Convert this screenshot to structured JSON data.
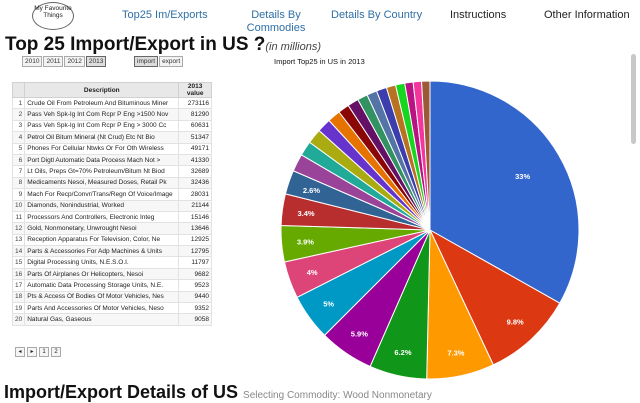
{
  "nav": {
    "logo": "My Favourite Things",
    "links": [
      "Top25 Im/Exports",
      "Details By Commodies",
      "Details By Country",
      "Instructions",
      "Other Information"
    ]
  },
  "title": {
    "main": "Top 25 Import/Export in US ?",
    "unit": "(in millions)"
  },
  "years": [
    "2010",
    "2011",
    "2012",
    "2013"
  ],
  "year_selected": "2013",
  "types": [
    "import",
    "export"
  ],
  "type_selected": "import",
  "table": {
    "headers": [
      "",
      "Description",
      "2013 value"
    ],
    "rows": [
      [
        "1",
        "Crude Oil From Petroleum And Bituminous Miner",
        "273116"
      ],
      [
        "2",
        "Pass Veh Spk-Ig Int Com Rcpr P Eng >1500 Nov",
        "81290"
      ],
      [
        "3",
        "Pass Veh Spk-Ig Int Com Rcpr P Eng > 3000 Cc",
        "60631"
      ],
      [
        "4",
        "Petrol Oil Bitum Mineral (Nt Crud) Etc Nt Bio",
        "51347"
      ],
      [
        "5",
        "Phones For Cellular Ntwks Or For Oth Wireless",
        "49171"
      ],
      [
        "6",
        "Port Digtl Automatic Data Process Mach Not >",
        "41330"
      ],
      [
        "7",
        "Lt Oils, Preps Gt=70% Petroleum/Bitum Nt Biod",
        "32689"
      ],
      [
        "8",
        "Medicaments Nesoi, Measured Doses, Retail Pk",
        "32436"
      ],
      [
        "9",
        "Mach For Recp/Convr/Trans/Regn Of Voice/Image",
        "28031"
      ],
      [
        "10",
        "Diamonds, Nonindustrial, Worked",
        "21144"
      ],
      [
        "11",
        "Processors And Controllers, Electronic Integ",
        "15146"
      ],
      [
        "12",
        "Gold, Nonmonetary, Unwrought Nesoi",
        "13646"
      ],
      [
        "13",
        "Reception Apparatus For Television, Color, Ne",
        "12925"
      ],
      [
        "14",
        "Parts & Accessories For Adp Machines & Units",
        "12795"
      ],
      [
        "15",
        "Digital Processing Units, N.E.S.O.I.",
        "11797"
      ],
      [
        "16",
        "Parts Of Airplanes Or Helicopters, Nesoi",
        "9682"
      ],
      [
        "17",
        "Automatic Data Processing Storage Units, N.E.",
        "9523"
      ],
      [
        "18",
        "Pts & Access Of Bodies Of Motor Vehicles, Nes",
        "9440"
      ],
      [
        "19",
        "Parts And Accessories Of Motor Vehicles, Neso",
        "9352"
      ],
      [
        "20",
        "Natural Gas, Gaseous",
        "9058"
      ]
    ]
  },
  "pager": {
    "pages": [
      "1",
      "2"
    ]
  },
  "chart_data": {
    "type": "pie",
    "title": "Import Top25 in US in 2013",
    "slices": [
      {
        "label": "33%",
        "value": 33,
        "color": "#3366cc"
      },
      {
        "label": "9.8%",
        "value": 9.8,
        "color": "#dc3912"
      },
      {
        "label": "7.3%",
        "value": 7.3,
        "color": "#ff9900"
      },
      {
        "label": "6.2%",
        "value": 6.2,
        "color": "#109618"
      },
      {
        "label": "5.9%",
        "value": 5.9,
        "color": "#990099"
      },
      {
        "label": "5%",
        "value": 5.0,
        "color": "#0099c6"
      },
      {
        "label": "4%",
        "value": 4.0,
        "color": "#dd4477"
      },
      {
        "label": "3.9%",
        "value": 3.9,
        "color": "#66aa00"
      },
      {
        "label": "3.4%",
        "value": 3.4,
        "color": "#b82e2e"
      },
      {
        "label": "2.6%",
        "value": 2.6,
        "color": "#316395"
      },
      {
        "label": "",
        "value": 1.9,
        "color": "#994499"
      },
      {
        "label": "",
        "value": 1.6,
        "color": "#22aa99"
      },
      {
        "label": "",
        "value": 1.6,
        "color": "#aaaa11"
      },
      {
        "label": "",
        "value": 1.5,
        "color": "#6633cc"
      },
      {
        "label": "",
        "value": 1.4,
        "color": "#e67300"
      },
      {
        "label": "",
        "value": 1.2,
        "color": "#8b0707"
      },
      {
        "label": "",
        "value": 1.2,
        "color": "#651067"
      },
      {
        "label": "",
        "value": 1.1,
        "color": "#329262"
      },
      {
        "label": "",
        "value": 1.1,
        "color": "#5574a6"
      },
      {
        "label": "",
        "value": 1.1,
        "color": "#3b3eac"
      },
      {
        "label": "",
        "value": 1.0,
        "color": "#b77322"
      },
      {
        "label": "",
        "value": 1.0,
        "color": "#16d620"
      },
      {
        "label": "",
        "value": 0.9,
        "color": "#b91383"
      },
      {
        "label": "",
        "value": 0.9,
        "color": "#f4359e"
      },
      {
        "label": "",
        "value": 0.9,
        "color": "#9c5935"
      }
    ]
  },
  "bottom": {
    "title": "Import/Export Details of US",
    "subtitle": "Selecting Commodity: Wood Nonmonetary"
  }
}
